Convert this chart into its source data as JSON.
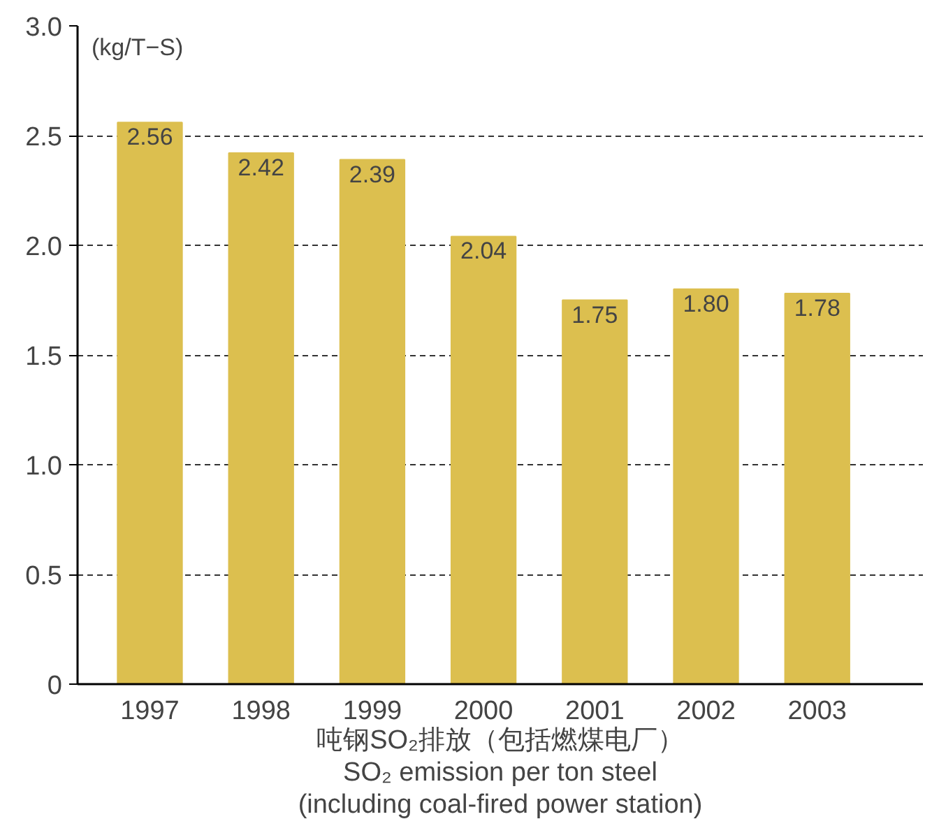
{
  "chart_data": {
    "type": "bar",
    "ylabel": "(kg/T−S)",
    "xlabel": "吨钢SO₂排放（包括燃煤电厂）\nSO₂ emission per ton steel\n(including coal-fired power station)",
    "categories": [
      "1997",
      "1998",
      "1999",
      "2000",
      "2001",
      "2002",
      "2003"
    ],
    "values": [
      2.56,
      2.42,
      2.39,
      2.04,
      1.75,
      1.8,
      1.78
    ],
    "value_labels": [
      "2.56",
      "2.42",
      "2.39",
      "2.04",
      "1.75",
      "1.80",
      "1.78"
    ],
    "color": "#dcbf4f",
    "ylim": [
      0,
      3.0
    ],
    "yticks": [
      {
        "value": 0,
        "label": "0"
      },
      {
        "value": 0.5,
        "label": "0.5"
      },
      {
        "value": 1.0,
        "label": "1.0"
      },
      {
        "value": 1.5,
        "label": "1.5"
      },
      {
        "value": 2.0,
        "label": "2.0"
      },
      {
        "value": 2.5,
        "label": "2.5"
      },
      {
        "value": 3.0,
        "label": "3.0"
      }
    ],
    "grid": "y"
  }
}
